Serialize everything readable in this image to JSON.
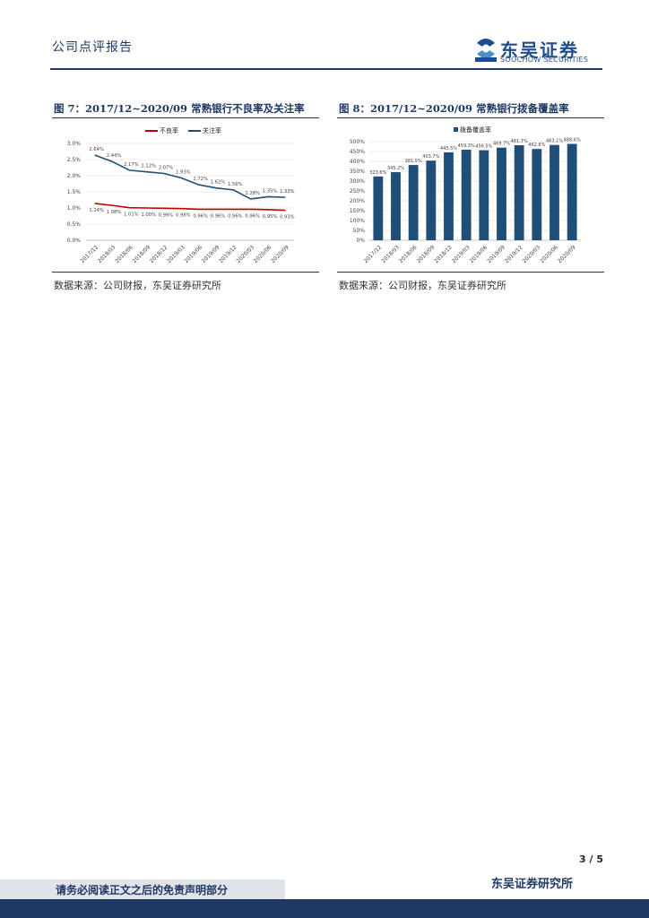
{
  "header": {
    "report_type": "公司点评报告",
    "logo_cn": "东吴证券",
    "logo_en": "SOOCHOW SECURITIES",
    "logo_mark": "SCS"
  },
  "figures": [
    {
      "title": "图 7：2017/12~2020/09 常熟银行不良率及关注率",
      "source": "数据来源：公司财报，东吴证券研究所"
    },
    {
      "title": "图 8：2017/12~2020/09 常熟银行拨备覆盖率",
      "source": "数据来源：公司财报，东吴证券研究所"
    }
  ],
  "chart_data": [
    {
      "type": "line",
      "categories": [
        "2017/12",
        "2018/03",
        "2018/06",
        "2018/09",
        "2018/12",
        "2019/03",
        "2019/06",
        "2019/09",
        "2019/12",
        "2020/03",
        "2020/06",
        "2020/09"
      ],
      "series": [
        {
          "name": "不良率",
          "color": "#c00000",
          "values": [
            1.14,
            1.08,
            1.01,
            1.0,
            0.99,
            0.98,
            0.96,
            0.96,
            0.96,
            0.96,
            0.95,
            0.93
          ],
          "labels": [
            "1.14%",
            "1.08%",
            "1.01%",
            "1.00%",
            "0.99%",
            "0.98%",
            "0.96%",
            "0.96%",
            "0.96%",
            "0.96%",
            "0.95%",
            "0.93%"
          ]
        },
        {
          "name": "关注率",
          "color": "#1f4e79",
          "values": [
            2.64,
            2.44,
            2.17,
            2.12,
            2.07,
            1.93,
            1.72,
            1.62,
            1.56,
            1.28,
            1.35,
            1.33
          ],
          "labels": [
            "2.64%",
            "2.44%",
            "2.17%",
            "2.12%",
            "2.07%",
            "1.93%",
            "1.72%",
            "1.62%",
            "1.56%",
            "1.28%",
            "1.35%",
            "1.33%"
          ]
        }
      ],
      "ylim": [
        0,
        3.0
      ],
      "yticks": [
        "0.0%",
        "0.5%",
        "1.0%",
        "1.5%",
        "2.0%",
        "2.5%",
        "3.0%"
      ],
      "legend": "top"
    },
    {
      "type": "bar",
      "categories": [
        "2017/12",
        "2018/03",
        "2018/06",
        "2018/09",
        "2018/12",
        "2019/03",
        "2019/06",
        "2019/09",
        "2019/12",
        "2020/03",
        "2020/06",
        "2020/09"
      ],
      "series": [
        {
          "name": "拨备覆盖率",
          "color": "#1f4e79",
          "values": [
            323.6,
            345.2,
            381.5,
            403.7,
            445.5,
            459.3,
            456.5,
            469.7,
            481.7,
            462.8,
            483.1,
            488.6
          ],
          "labels": [
            "323.6%",
            "345.2%",
            "381.5%",
            "403.7%",
            "445.5%",
            "459.3%",
            "456.5%",
            "469.7%",
            "481.7%",
            "462.8%",
            "483.1%",
            "488.6%"
          ]
        }
      ],
      "ylim": [
        0,
        500
      ],
      "yticks": [
        "0%",
        "50%",
        "100%",
        "150%",
        "200%",
        "250%",
        "300%",
        "350%",
        "400%",
        "450%",
        "500%"
      ],
      "legend": "top"
    }
  ],
  "footer": {
    "page": "3 / 5",
    "org": "东吴证券研究所",
    "disclaimer": "请务必阅读正文之后的免责声明部分"
  }
}
